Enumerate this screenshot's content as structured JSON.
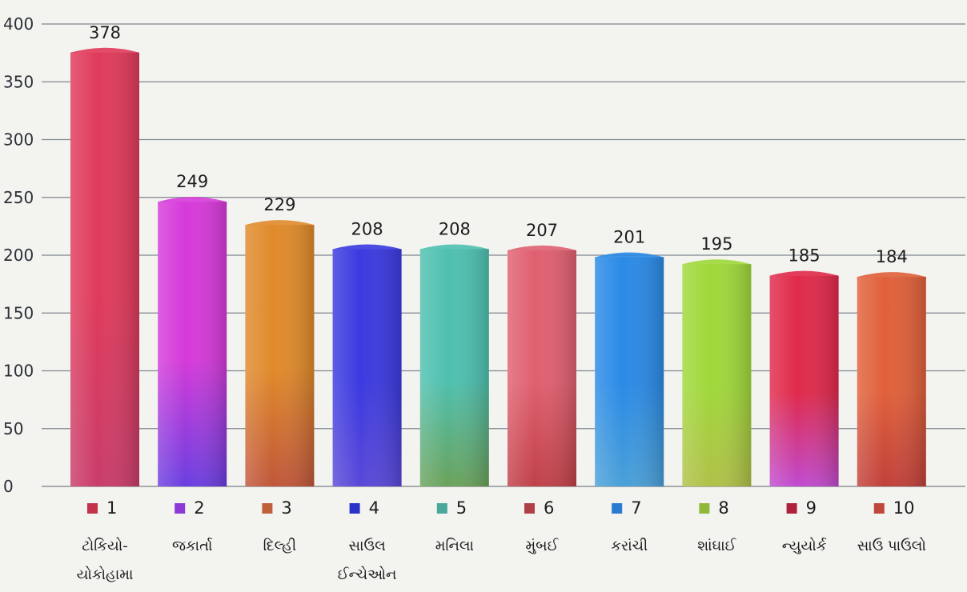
{
  "chart_data": {
    "type": "bar",
    "title": "",
    "xlabel": "",
    "ylabel": "",
    "ylim": [
      0,
      400
    ],
    "y_ticks": [
      "0",
      "50",
      "100",
      "150",
      "200",
      "250",
      "300",
      "350",
      "400"
    ],
    "grid": true,
    "legend_placement": "bottom, below each bar",
    "categories": [
      {
        "rank": "1",
        "name": "ટોકિયો-",
        "name2": "યોકોહામા"
      },
      {
        "rank": "2",
        "name": "જકાર્તા",
        "name2": ""
      },
      {
        "rank": "3",
        "name": "દિલ્હી",
        "name2": ""
      },
      {
        "rank": "4",
        "name": "સાઉલ",
        "name2": "ઈન્ચેઓન"
      },
      {
        "rank": "5",
        "name": "મનિલા",
        "name2": ""
      },
      {
        "rank": "6",
        "name": "મુંબઈ",
        "name2": ""
      },
      {
        "rank": "7",
        "name": "કરાંચી",
        "name2": ""
      },
      {
        "rank": "8",
        "name": "શાંઘાઈ",
        "name2": ""
      },
      {
        "rank": "9",
        "name": "ન્યુયોર્ક",
        "name2": ""
      },
      {
        "rank": "10",
        "name": "સાઉ પાઉલો",
        "name2": ""
      }
    ],
    "values": [
      378,
      249,
      229,
      208,
      208,
      207,
      201,
      195,
      185,
      184
    ],
    "value_labels": [
      "378",
      "249",
      "229",
      "208",
      "208",
      "207",
      "201",
      "195",
      "185",
      "184"
    ],
    "colors": [
      {
        "top": "#e03a5a",
        "bottom": "#c93c6a",
        "legend": "#c2334a"
      },
      {
        "top": "#d63ad9",
        "bottom": "#6a3ee0",
        "legend": "#8c3ad6"
      },
      {
        "top": "#e08a2a",
        "bottom": "#c0563a",
        "legend": "#c0603a"
      },
      {
        "top": "#3a3ae0",
        "bottom": "#5a48d8",
        "legend": "#2a32c8"
      },
      {
        "top": "#4ec0b0",
        "bottom": "#6aa25a",
        "legend": "#4aa89a"
      },
      {
        "top": "#e06070",
        "bottom": "#c04048",
        "legend": "#b04048"
      },
      {
        "top": "#2a8ae6",
        "bottom": "#4aa0d8",
        "legend": "#2a7ad0"
      },
      {
        "top": "#a0d83a",
        "bottom": "#b0c048",
        "legend": "#90b83a"
      },
      {
        "top": "#e02a4a",
        "bottom": "#c04ad0",
        "legend": "#b0203a"
      },
      {
        "top": "#e0603a",
        "bottom": "#c0403a",
        "legend": "#c0483a"
      }
    ]
  }
}
